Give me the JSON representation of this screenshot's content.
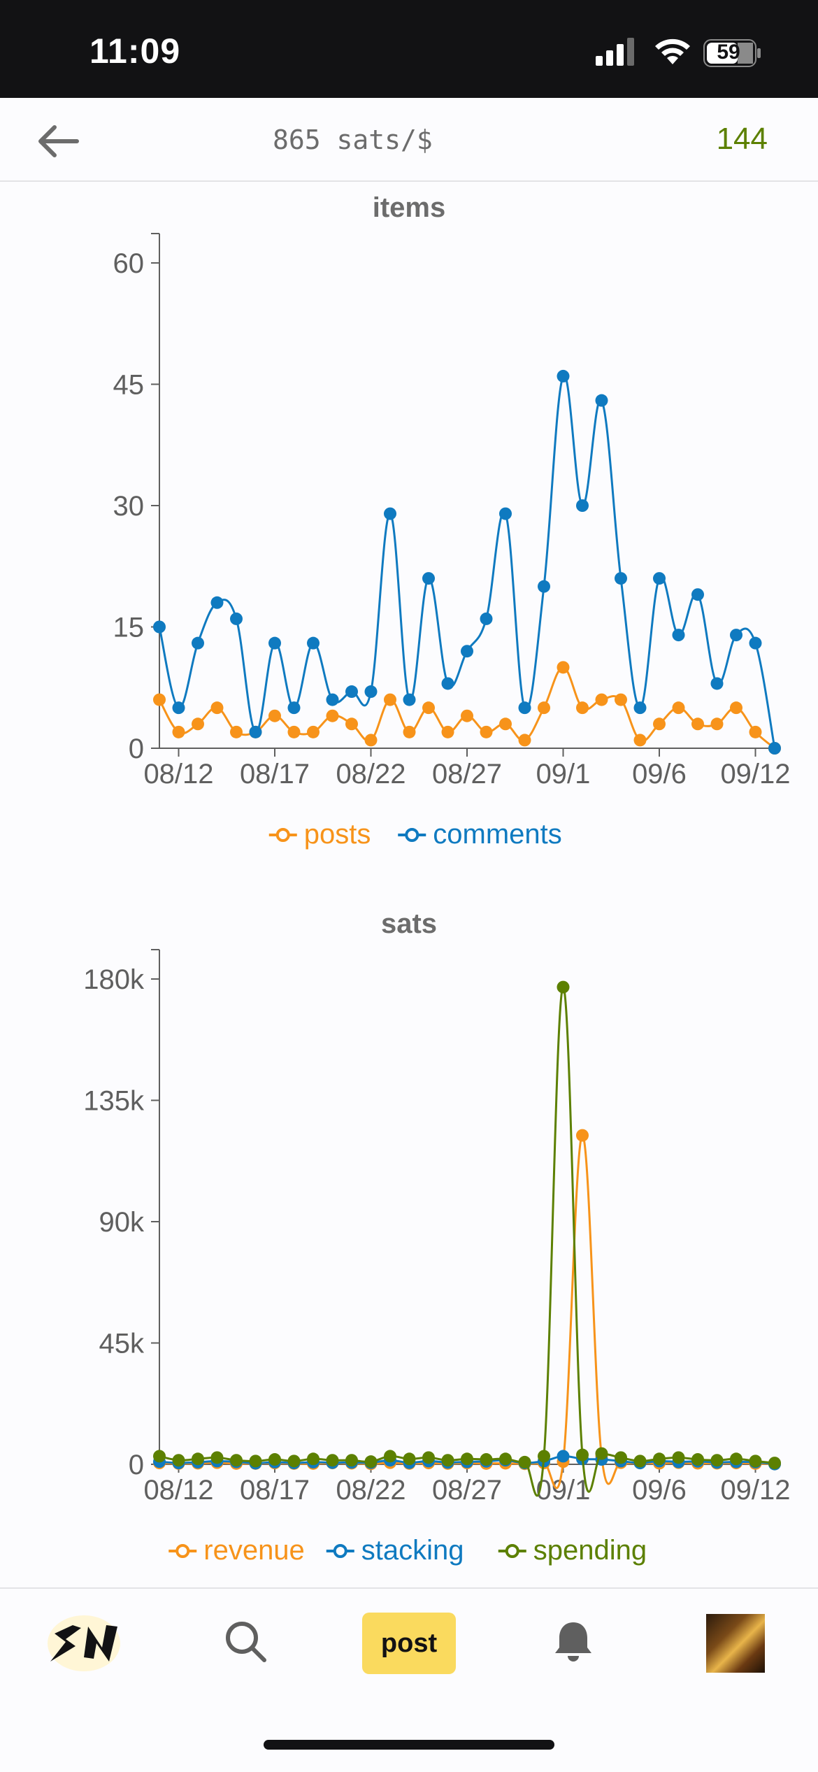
{
  "status_bar": {
    "time": "11:09",
    "battery": "59",
    "icons": [
      "signal-icon",
      "wifi-icon",
      "battery-icon"
    ]
  },
  "header": {
    "back_icon": "arrow-left-icon",
    "price": "865 sats/$",
    "block_height": "144",
    "block_height_color": "#5c8001"
  },
  "colors": {
    "orange": "#f7931a",
    "blue": "#0f7ac0",
    "green": "#5c8001",
    "text": "#5f5f5f",
    "yellow": "#fada5e"
  },
  "chart_data": [
    {
      "type": "line",
      "title": "items",
      "x_tick_labels": [
        "08/12",
        "08/17",
        "08/22",
        "08/27",
        "09/1",
        "09/6",
        "09/12"
      ],
      "y_tick_labels": [
        "0",
        "15",
        "30",
        "45",
        "60"
      ],
      "ylim": [
        0,
        60
      ],
      "num_points": 33,
      "series": [
        {
          "name": "posts",
          "color": "#f7931a",
          "values": [
            6,
            2,
            3,
            5,
            2,
            2,
            4,
            2,
            2,
            4,
            3,
            1,
            6,
            2,
            5,
            2,
            4,
            2,
            3,
            1,
            5,
            10,
            5,
            6,
            6,
            1,
            3,
            5,
            3,
            3,
            5,
            2,
            0
          ]
        },
        {
          "name": "comments",
          "color": "#0f7ac0",
          "values": [
            15,
            5,
            13,
            18,
            16,
            2,
            13,
            5,
            13,
            6,
            7,
            7,
            29,
            6,
            21,
            8,
            12,
            16,
            29,
            5,
            20,
            46,
            30,
            43,
            21,
            5,
            21,
            14,
            19,
            8,
            14,
            13,
            0
          ]
        }
      ],
      "legend_position": "bottom-center"
    },
    {
      "type": "line",
      "title": "sats",
      "x_tick_labels": [
        "08/12",
        "08/17",
        "08/22",
        "08/27",
        "09/1",
        "09/6",
        "09/12"
      ],
      "y_tick_labels": [
        "0",
        "45k",
        "90k",
        "135k",
        "180k"
      ],
      "ylim": [
        0,
        180000
      ],
      "num_points": 33,
      "series": [
        {
          "name": "revenue",
          "color": "#f7931a",
          "values": [
            500,
            300,
            400,
            600,
            300,
            300,
            500,
            300,
            300,
            500,
            400,
            200,
            600,
            300,
            500,
            300,
            500,
            300,
            400,
            200,
            500,
            1000,
            122000,
            3000,
            600,
            500,
            400,
            600,
            400,
            400,
            500,
            300,
            100
          ]
        },
        {
          "name": "stacking",
          "color": "#0f7ac0",
          "values": [
            1000,
            500,
            800,
            1200,
            900,
            400,
            800,
            500,
            800,
            600,
            700,
            600,
            1500,
            600,
            1200,
            700,
            900,
            1100,
            1500,
            500,
            1200,
            3000,
            2000,
            1800,
            1200,
            500,
            1200,
            900,
            1100,
            700,
            900,
            800,
            100
          ]
        },
        {
          "name": "spending",
          "color": "#5c8001",
          "values": [
            3000,
            1500,
            2000,
            2500,
            1500,
            1200,
            1800,
            1200,
            2000,
            1500,
            1500,
            1000,
            3000,
            2000,
            2500,
            1500,
            2000,
            1800,
            2000,
            800,
            3000,
            177000,
            3500,
            4000,
            2500,
            1200,
            2000,
            2500,
            1800,
            1500,
            2000,
            1200,
            500
          ]
        }
      ],
      "legend_position": "bottom-center"
    }
  ],
  "bottom_nav": {
    "logo_label": "SN",
    "search_icon": "search-icon",
    "post_label": "post",
    "bell_icon": "bell-icon",
    "avatar": "avatar"
  }
}
